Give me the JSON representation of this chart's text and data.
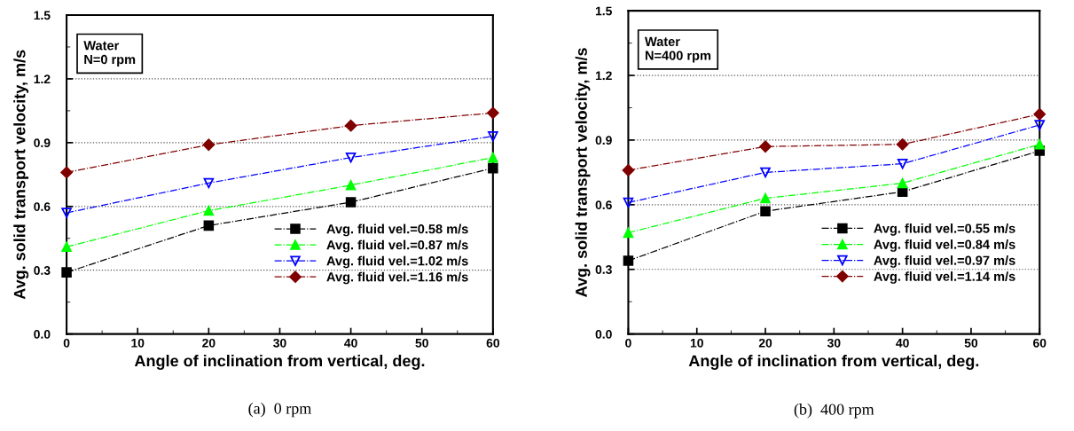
{
  "chart_data": [
    {
      "type": "line",
      "xlabel": "Angle of inclination from vertical, deg.",
      "ylabel": "Avg. solid transport velocity, m/s",
      "annotations": [
        "Water\nN=0 rpm",
        "(a)  0 rpm"
      ],
      "x": [
        0,
        20,
        40,
        60
      ],
      "xlim": [
        0,
        60
      ],
      "xticks": [
        0,
        10,
        20,
        30,
        40,
        50,
        60
      ],
      "ylim": [
        0,
        1.5
      ],
      "yticks": [
        {
          "value": 0,
          "label": "0.0"
        },
        0.3,
        0.6,
        0.9,
        1.2,
        1.5
      ],
      "grid": "y",
      "legend": "bottom right",
      "line_style": "dashed",
      "series": [
        {
          "name": "Avg. fluid vel.=0.58 m/s",
          "color": "#000000",
          "marker": "square",
          "values": [
            0.29,
            0.51,
            0.62,
            0.78
          ]
        },
        {
          "name": "Avg. fluid vel.=0.87 m/s",
          "color": "#00ff00",
          "marker": "triangle",
          "values": [
            0.41,
            0.58,
            0.7,
            0.83
          ]
        },
        {
          "name": "Avg. fluid vel.=1.02 m/s",
          "color": "#0000ff",
          "marker": "triangle_down",
          "values": [
            0.57,
            0.71,
            0.83,
            0.93
          ]
        },
        {
          "name": "Avg. fluid vel.=1.16 m/s",
          "color": "#800000",
          "marker": "diamond",
          "values": [
            0.76,
            0.89,
            0.98,
            1.04
          ]
        }
      ]
    },
    {
      "type": "line",
      "xlabel": "Angle of inclination from vertical, deg.",
      "ylabel": "Avg. solid transport velocity, m/s",
      "annotations": [
        "Water\nN=400 rpm",
        "(b)  400 rpm"
      ],
      "x": [
        0,
        20,
        40,
        60
      ],
      "xlim": [
        0,
        60
      ],
      "xticks": [
        0,
        10,
        20,
        30,
        40,
        50,
        60
      ],
      "ylim": [
        0,
        1.5
      ],
      "yticks": [
        {
          "value": 0,
          "label": "0.0"
        },
        0.3,
        0.6,
        0.9,
        1.2,
        1.5
      ],
      "grid": "y",
      "legend": "bottom right",
      "line_style": "dashed",
      "series": [
        {
          "name": "Avg. fluid vel.=0.55 m/s",
          "color": "#000000",
          "marker": "square",
          "values": [
            0.34,
            0.57,
            0.66,
            0.85
          ]
        },
        {
          "name": "Avg. fluid vel.=0.84 m/s",
          "color": "#00ff00",
          "marker": "triangle",
          "values": [
            0.47,
            0.63,
            0.7,
            0.88
          ]
        },
        {
          "name": "Avg. fluid vel.=0.97 m/s",
          "color": "#0000ff",
          "marker": "triangle_down",
          "values": [
            0.61,
            0.75,
            0.79,
            0.97
          ]
        },
        {
          "name": "Avg. fluid vel.=1.14 m/s",
          "color": "#800000",
          "marker": "diamond",
          "values": [
            0.76,
            0.87,
            0.88,
            1.02
          ]
        }
      ]
    }
  ]
}
